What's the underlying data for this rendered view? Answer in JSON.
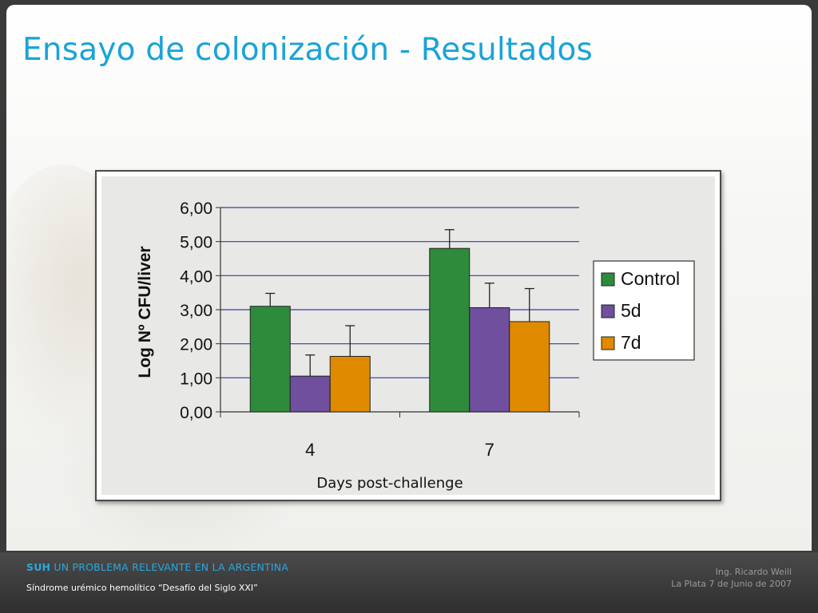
{
  "slide": {
    "title": "Ensayo de colonización - Resultados"
  },
  "footer": {
    "brand_bold": "SUH",
    "brand_rest": " UN PROBLEMA RELEVANTE EN LA ARGENTINA",
    "subtitle": "Síndrome urémico hemolítico “Desafío del Siglo XXI”",
    "author": "Ing. Ricardo Weill",
    "place_date": "La Plata 7 de Junio de 2007"
  },
  "colors": {
    "title": "#1aa3d8",
    "control": "#2e8b3c",
    "d5": "#6f4f9e",
    "d7": "#e08a00",
    "gridline": "#3a3aa0"
  },
  "chart_data": {
    "type": "bar",
    "categories": [
      "4",
      "7"
    ],
    "series": [
      {
        "name": "Control",
        "values": [
          3.1,
          4.8
        ],
        "errors": [
          0.38,
          0.55
        ],
        "color": "#2e8b3c"
      },
      {
        "name": "5d",
        "values": [
          1.05,
          3.06
        ],
        "errors": [
          0.62,
          0.72
        ],
        "color": "#6f4f9e"
      },
      {
        "name": "7d",
        "values": [
          1.63,
          2.65
        ],
        "errors": [
          0.9,
          0.97
        ],
        "color": "#e08a00"
      }
    ],
    "title": "",
    "xlabel": "Days post-challenge",
    "ylabel": "Log Nº CFU/liver",
    "ylim": [
      0,
      6
    ],
    "yticks": [
      "0,00",
      "1,00",
      "2,00",
      "3,00",
      "4,00",
      "5,00",
      "6,00"
    ],
    "grid": true,
    "legend": "right"
  }
}
